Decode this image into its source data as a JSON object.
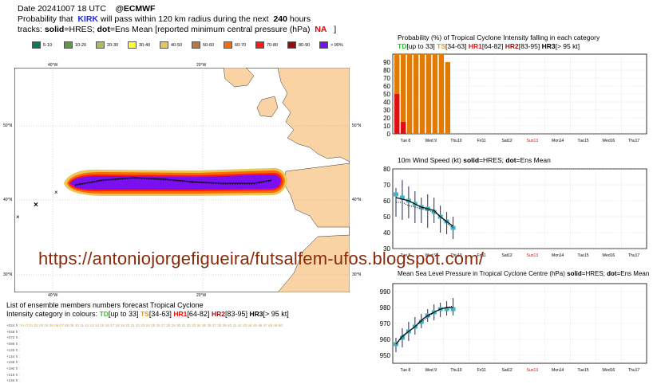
{
  "header": {
    "line1_date": "Date 20241007 18 UTC",
    "line1_source": "@ECMWF",
    "line2_pre": "Probability that",
    "line2_storm": "KIRK",
    "line2_post": "will pass within 120 km radius during the next",
    "line2_hours": "240",
    "line2_unit": "hours",
    "line3_pre": "tracks:",
    "line3_solid": "solid",
    "line3_mid": "=HRES;",
    "line3_dot": "dot",
    "line3_post": "=Ens Mean [reported minimum central pressure (hPa)",
    "line3_na": "NA",
    "line3_end": "]"
  },
  "legend": [
    {
      "label": "5-10",
      "color": "#0a7a5a"
    },
    {
      "label": "10-20",
      "color": "#5a9a4a"
    },
    {
      "label": "20-30",
      "color": "#a6c05a"
    },
    {
      "label": "30-40",
      "color": "#ffff33"
    },
    {
      "label": "40-50",
      "color": "#e8c85a"
    },
    {
      "label": "50-60",
      "color": "#c0783a"
    },
    {
      "label": "60-70",
      "color": "#ff6a00"
    },
    {
      "label": "70-80",
      "color": "#ff1a1a"
    },
    {
      "label": "80-90",
      "color": "#9a0a0a"
    },
    {
      "label": "> 90%",
      "color": "#7a10f0"
    }
  ],
  "map": {
    "lon_labels": [
      "40°W",
      "20°W",
      "40°W",
      "20°W"
    ],
    "lat_labels": [
      "50°N",
      "40°N",
      "30°N",
      "50°N",
      "40°N",
      "30°N"
    ]
  },
  "watermark": "https://antoniojorgefigueira/futsalfem-ufos.blogspot.com/",
  "ensemble": {
    "title": "List of ensemble members numbers forecast Tropical Cyclone",
    "intensity_pre": "Intensity category in colours:",
    "td": "TD",
    "td_range": "[up to 33]",
    "ts": "TS",
    "ts_range": "[34-63]",
    "hr1": "HR1",
    "hr1_range": "[64-82]",
    "hr2": "HR2",
    "hr2_range": "[83-95]",
    "hr3": "HR3",
    "hr3_range": "[> 95 kt]",
    "rows": [
      "+024 h :",
      "+048 h :",
      "+072 h :",
      "+096 h :",
      "+120 h :",
      "+144 h :",
      "+168 h :",
      "+192 h :",
      "+216 h :",
      "+240 h :"
    ],
    "members": "hr cf 01 02 03 04 05 06 07 08 09 10 11 12 13 14 15 16 17 18 19 20 21 22 23 24 25 26 27 28 29 30 31 32 33 34 35 36 37 38 39 40 41 42 43 44 45 46 47 48 49 50"
  },
  "panels": {
    "prob_title": "Probability (%) of Tropical Cyclone Intensity falling in each category",
    "prob_cats": {
      "td": "TD",
      "td_r": "[up to 33]",
      "ts": "TS",
      "ts_r": "[34-63]",
      "hr1": "HR1",
      "hr1_r": "[64-82]",
      "hr2": "HR2",
      "hr2_r": "[83-95]",
      "hr3": "HR3",
      "hr3_r": "[> 95 kt]"
    },
    "wind_title_pre": "10m Wind Speed (kt)",
    "wind_title_solid": "solid",
    "wind_title_mid": "=HRES;",
    "wind_title_dot": "dot",
    "wind_title_post": "=Ens Mean",
    "mslp_title_pre": "Mean Sea Level Pressure in Tropical Cyclone Centre (hPa)",
    "mslp_title_solid": "solid",
    "mslp_title_mid": "=HRES;",
    "mslp_title_dot": "dot",
    "mslp_title_post": "=Ens Mean"
  },
  "chart_data": [
    {
      "type": "bar",
      "title": "Probability (%) of Tropical Cyclone Intensity falling in each category",
      "x_labels": [
        "Tue 8",
        "Wed 9",
        "Thu10",
        "Fri11",
        "Sat12",
        "Sun13",
        "Mon14",
        "Tue15",
        "Wed16",
        "Thu17"
      ],
      "ylim": [
        0,
        100
      ],
      "yticks": [
        0,
        10,
        20,
        30,
        40,
        50,
        60,
        70,
        80,
        90
      ],
      "series": [
        {
          "name": "TS",
          "color": "#e07b00",
          "x": [
            0,
            1,
            2,
            3,
            4,
            5,
            6,
            7,
            8
          ],
          "values": [
            100,
            100,
            100,
            100,
            100,
            100,
            100,
            100,
            90
          ]
        },
        {
          "name": "HR1",
          "color": "#e01010",
          "x": [
            0,
            1
          ],
          "values": [
            50,
            15
          ]
        }
      ]
    },
    {
      "type": "line",
      "title": "10m Wind Speed (kt)",
      "x_labels": [
        "Tue 8",
        "Wed 9",
        "Thu10",
        "Fri11",
        "Sat12",
        "Sun13",
        "Mon14",
        "Tue15",
        "Wed16",
        "Thu17"
      ],
      "ylim": [
        30,
        80
      ],
      "yticks": [
        30,
        40,
        50,
        60,
        70,
        80
      ],
      "hres": [
        62,
        61,
        60,
        58,
        56,
        55,
        54,
        50,
        47,
        44
      ],
      "ens_mean": [
        59,
        59,
        57,
        56,
        55,
        54,
        53,
        50,
        46,
        43
      ],
      "ens_min": [
        50,
        48,
        49,
        46,
        46,
        43,
        46,
        40,
        39,
        36
      ],
      "ens_max": [
        68,
        73,
        69,
        66,
        62,
        64,
        62,
        57,
        53,
        50
      ],
      "observed": [
        64,
        62,
        60,
        58,
        56,
        55,
        53,
        50,
        47,
        43
      ]
    },
    {
      "type": "line",
      "title": "Mean Sea Level Pressure in Tropical Cyclone Centre (hPa)",
      "x_labels": [
        "Tue 8",
        "Wed 9",
        "Thu10",
        "Fri11",
        "Sat12",
        "Sun13",
        "Mon14",
        "Tue15",
        "Wed16",
        "Thu17"
      ],
      "ylim": [
        945,
        995
      ],
      "yticks": [
        950,
        960,
        970,
        980,
        990
      ],
      "hres": [
        957,
        962,
        965,
        968,
        972,
        975,
        977,
        979,
        980,
        980
      ],
      "ens_mean": [
        957,
        961,
        965,
        968,
        971,
        974,
        977,
        979,
        980,
        981
      ],
      "ens_min": [
        952,
        955,
        959,
        963,
        967,
        971,
        972,
        974,
        975,
        975
      ],
      "ens_max": [
        961,
        967,
        971,
        974,
        976,
        979,
        982,
        983,
        984,
        986
      ],
      "observed": [
        957,
        961,
        965,
        968,
        971,
        975,
        977,
        979,
        979,
        979
      ]
    }
  ]
}
